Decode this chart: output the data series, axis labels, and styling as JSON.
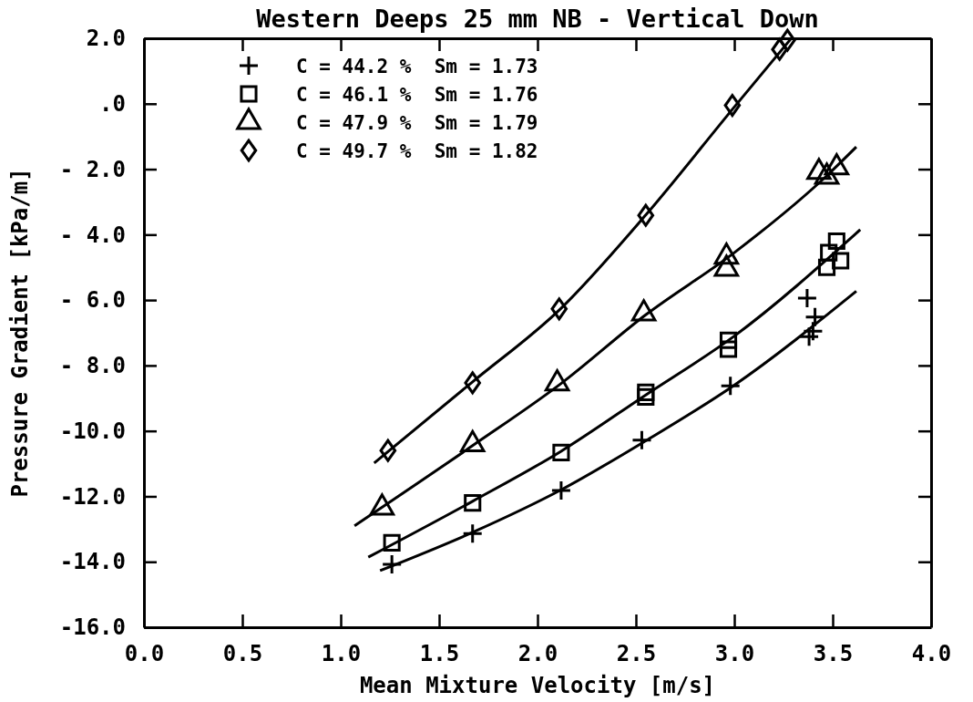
{
  "chart_data": {
    "type": "scatter",
    "title": "Western Deeps 25 mm NB - Vertical Down",
    "xlabel": "Mean Mixture Velocity   [m/s]",
    "ylabel": "Pressure Gradient   [kPa/m]",
    "xlim": [
      0,
      4
    ],
    "ylim": [
      -16,
      2
    ],
    "xticks": [
      {
        "value": 0,
        "label": "0.0"
      },
      {
        "value": 0.5,
        "label": "0.5"
      },
      {
        "value": 1,
        "label": "1.0"
      },
      {
        "value": 1.5,
        "label": "1.5"
      },
      {
        "value": 2,
        "label": "2.0"
      },
      {
        "value": 2.5,
        "label": "2.5"
      },
      {
        "value": 3,
        "label": "3.0"
      },
      {
        "value": 3.5,
        "label": "3.5"
      },
      {
        "value": 4,
        "label": "4.0"
      }
    ],
    "yticks": [
      {
        "value": 2,
        "label": "2.0"
      },
      {
        "value": 0,
        "label": ".0"
      },
      {
        "value": -2,
        "label": "- 2.0"
      },
      {
        "value": -4,
        "label": "- 4.0"
      },
      {
        "value": -6,
        "label": "- 6.0"
      },
      {
        "value": -8,
        "label": "- 8.0"
      },
      {
        "value": -10,
        "label": "-10.0"
      },
      {
        "value": -12,
        "label": "-12.0"
      },
      {
        "value": -14,
        "label": "-14.0"
      },
      {
        "value": -16,
        "label": "-16.0"
      }
    ],
    "grid": false,
    "legend": "top left",
    "series": [
      {
        "name": "C = 44.2 %  Sm = 1.73",
        "marker": "cross",
        "color": "#000000",
        "x": [
          1.26,
          1.67,
          2.12,
          2.53,
          2.98,
          3.37,
          3.41,
          3.4,
          3.38
        ],
        "values": [
          -14.08,
          -13.14,
          -11.82,
          -10.28,
          -8.62,
          -5.94,
          -6.52,
          -6.95,
          -7.12
        ]
      },
      {
        "name": "C = 46.1 %  Sm = 1.76",
        "marker": "square",
        "color": "#000000",
        "x": [
          1.26,
          1.67,
          2.12,
          2.55,
          2.55,
          2.97,
          2.97,
          3.52,
          3.48,
          3.54,
          3.47
        ],
        "values": [
          -13.42,
          -12.2,
          -10.66,
          -8.82,
          -8.96,
          -7.23,
          -7.5,
          -4.2,
          -4.55,
          -4.8,
          -5.0
        ]
      },
      {
        "name": "C = 47.9 %  Sm = 1.79",
        "marker": "triangle",
        "color": "#000000",
        "x": [
          1.21,
          1.67,
          2.1,
          2.54,
          2.96,
          2.96,
          3.43,
          3.52,
          3.47
        ],
        "values": [
          -12.35,
          -10.41,
          -8.55,
          -6.41,
          -4.68,
          -5.05,
          -2.09,
          -1.95,
          -2.23
        ]
      },
      {
        "name": "C = 49.7 %  Sm = 1.82",
        "marker": "diamond",
        "color": "#000000",
        "x": [
          1.24,
          1.67,
          2.11,
          2.55,
          2.99,
          3.23,
          3.27
        ],
        "values": [
          -10.6,
          -8.53,
          -6.27,
          -3.41,
          -0.05,
          1.66,
          1.94
        ]
      },
      {
        "type": "line",
        "marker": "none",
        "color": "#000000",
        "x": [
          1.2,
          1.67,
          2.12,
          2.55,
          3.0,
          3.62
        ],
        "values": [
          -14.27,
          -13.1,
          -11.8,
          -10.3,
          -8.6,
          -5.73
        ]
      },
      {
        "type": "line",
        "marker": "none",
        "color": "#000000",
        "x": [
          1.14,
          1.67,
          2.12,
          2.55,
          3.0,
          3.64
        ],
        "values": [
          -13.86,
          -12.15,
          -10.62,
          -8.9,
          -7.1,
          -3.85
        ]
      },
      {
        "type": "line",
        "marker": "none",
        "color": "#000000",
        "x": [
          1.07,
          1.67,
          2.12,
          2.55,
          3.0,
          3.47,
          3.62
        ],
        "values": [
          -12.9,
          -10.45,
          -8.55,
          -6.45,
          -4.55,
          -2.2,
          -1.32
        ]
      },
      {
        "type": "line",
        "marker": "none",
        "color": "#000000",
        "x": [
          1.17,
          1.67,
          2.12,
          2.55,
          3.0,
          3.29
        ],
        "values": [
          -10.98,
          -8.5,
          -6.25,
          -3.4,
          -0.1,
          2.0
        ]
      }
    ]
  }
}
